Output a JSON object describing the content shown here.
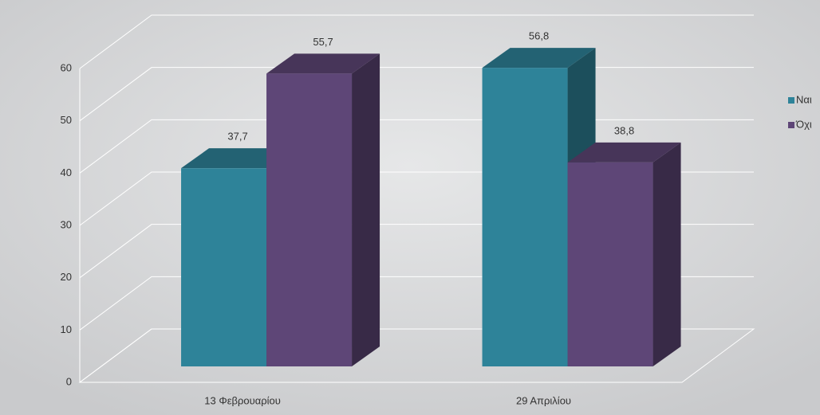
{
  "chart_data": {
    "type": "bar3d",
    "categories": [
      "13 Φεβρουαρίου",
      "29 Απριλίου"
    ],
    "series": [
      {
        "name": "Ναι",
        "color": "#2e8399",
        "values": [
          37.7,
          56.8
        ],
        "value_labels": [
          "37,7",
          "56,8"
        ]
      },
      {
        "name": "Όχι",
        "color": "#5e4677",
        "values": [
          55.7,
          38.8
        ],
        "value_labels": [
          "55,7",
          "38,8"
        ]
      }
    ],
    "ylim": [
      0,
      60
    ],
    "yticks": [
      0,
      10,
      20,
      30,
      40,
      50,
      60
    ],
    "grid": true
  }
}
